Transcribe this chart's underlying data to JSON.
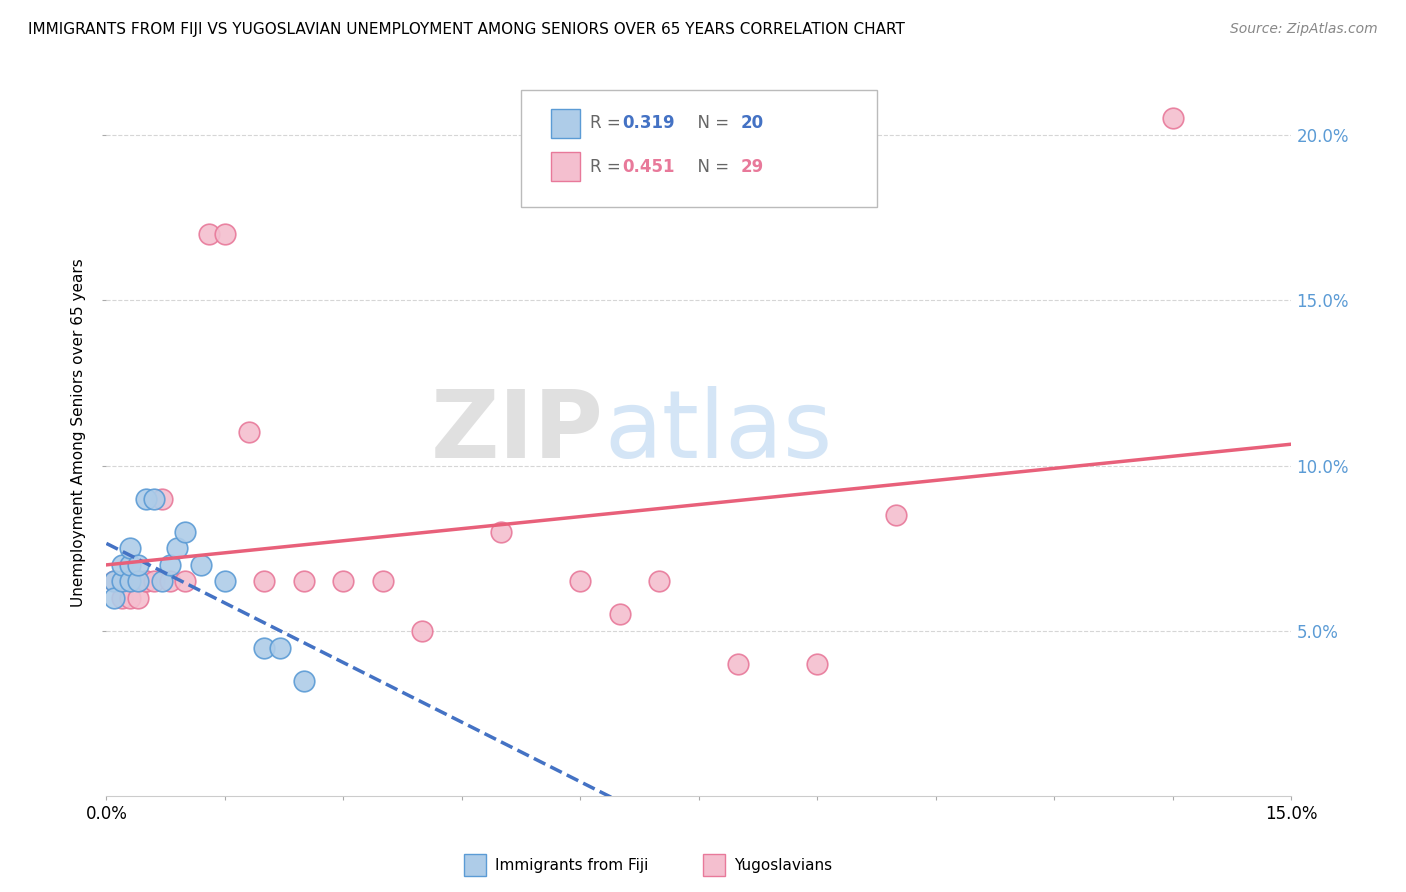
{
  "title": "IMMIGRANTS FROM FIJI VS YUGOSLAVIAN UNEMPLOYMENT AMONG SENIORS OVER 65 YEARS CORRELATION CHART",
  "source": "Source: ZipAtlas.com",
  "ylabel": "Unemployment Among Seniors over 65 years",
  "xlim": [
    0.0,
    0.15
  ],
  "ylim": [
    0.0,
    0.22
  ],
  "legend_fiji_r": "0.319",
  "legend_fiji_n": "20",
  "legend_yugo_r": "0.451",
  "legend_yugo_n": "29",
  "fiji_color": "#AECCE8",
  "fiji_edge_color": "#5B9BD5",
  "yugo_color": "#F4BFCF",
  "yugo_edge_color": "#E8799A",
  "fiji_line_color": "#4472C4",
  "yugo_line_color": "#E8607A",
  "watermark_zip": "ZIP",
  "watermark_atlas": "atlas",
  "fiji_x": [
    0.001,
    0.001,
    0.002,
    0.002,
    0.003,
    0.003,
    0.003,
    0.004,
    0.004,
    0.005,
    0.006,
    0.007,
    0.008,
    0.009,
    0.01,
    0.012,
    0.015,
    0.02,
    0.022,
    0.025
  ],
  "fiji_y": [
    0.065,
    0.06,
    0.065,
    0.07,
    0.065,
    0.07,
    0.075,
    0.065,
    0.07,
    0.09,
    0.09,
    0.065,
    0.07,
    0.075,
    0.08,
    0.07,
    0.065,
    0.045,
    0.045,
    0.035
  ],
  "yugo_x": [
    0.001,
    0.002,
    0.002,
    0.003,
    0.003,
    0.004,
    0.004,
    0.005,
    0.005,
    0.006,
    0.007,
    0.008,
    0.01,
    0.013,
    0.015,
    0.018,
    0.02,
    0.025,
    0.03,
    0.035,
    0.04,
    0.05,
    0.06,
    0.065,
    0.07,
    0.08,
    0.09,
    0.1,
    0.135
  ],
  "yugo_y": [
    0.065,
    0.065,
    0.06,
    0.065,
    0.06,
    0.065,
    0.06,
    0.065,
    0.065,
    0.065,
    0.09,
    0.065,
    0.065,
    0.17,
    0.17,
    0.11,
    0.065,
    0.065,
    0.065,
    0.065,
    0.05,
    0.08,
    0.065,
    0.055,
    0.065,
    0.04,
    0.04,
    0.085,
    0.205
  ]
}
